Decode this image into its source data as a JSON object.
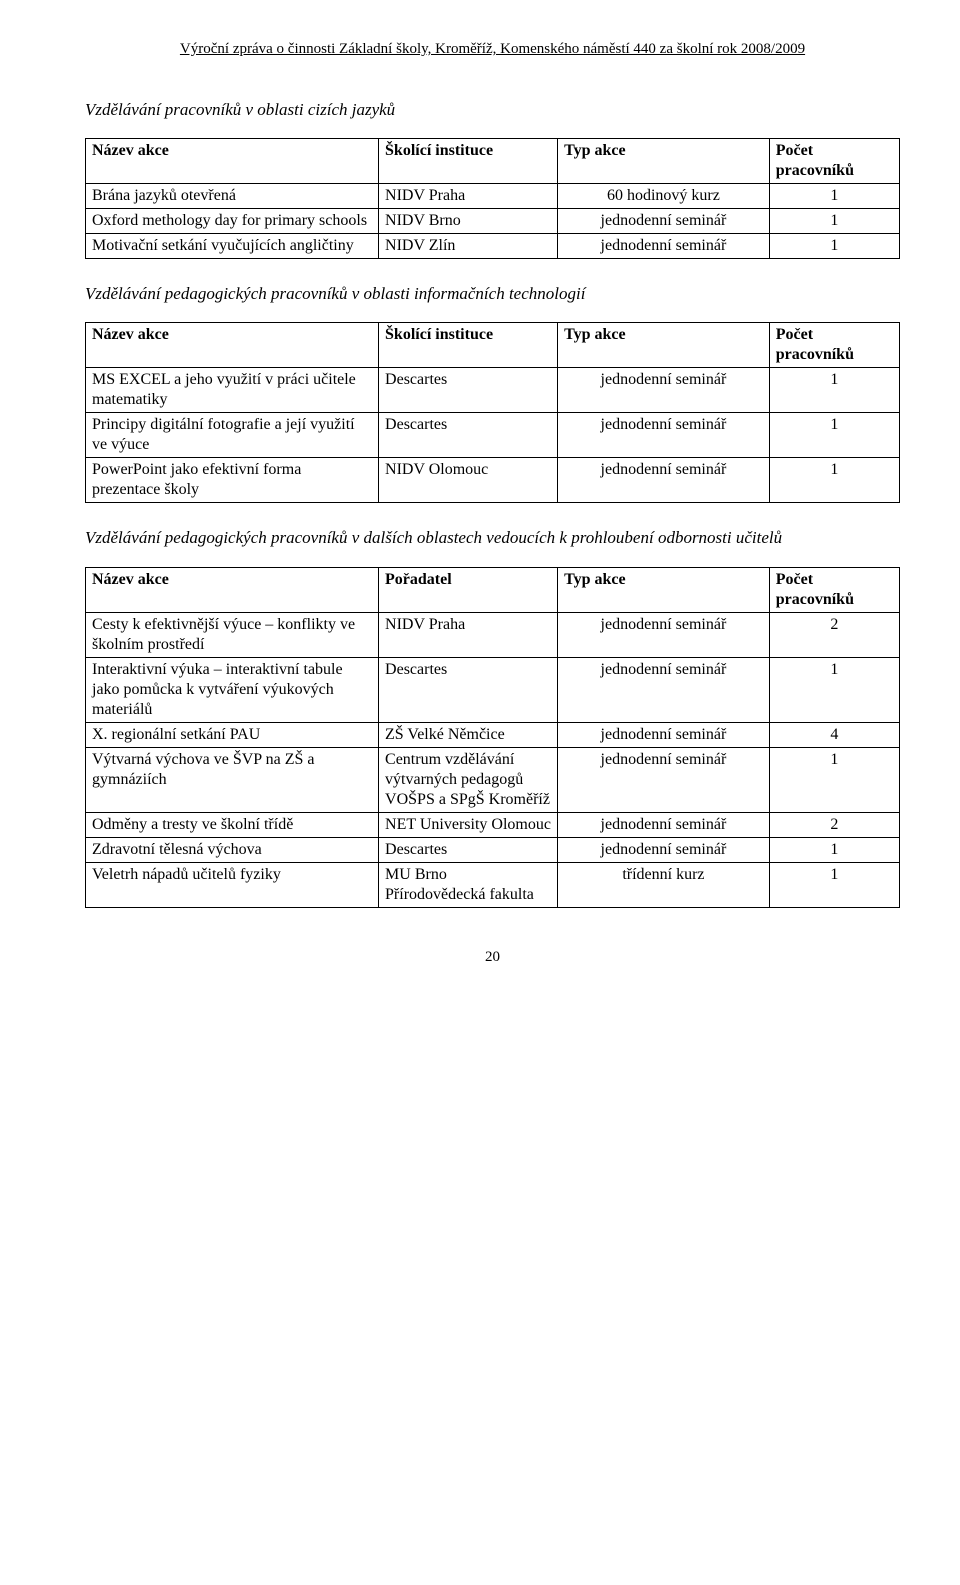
{
  "header": "Výroční zpráva o činnosti Základní školy, Kroměříž, Komenského náměstí 440 za školní rok 2008/2009",
  "page_number": "20",
  "section1": {
    "title": "Vzdělávání pracovníků v oblasti cizích jazyků",
    "columns": [
      "Název akce",
      "Školící instituce",
      "Typ akce",
      "Počet pracovníků"
    ],
    "rows": [
      [
        "Brána jazyků otevřená",
        "NIDV\nPraha",
        "60 hodinový kurz",
        "1"
      ],
      [
        "Oxford methology day for primary schools",
        "NIDV\nBrno",
        "jednodenní seminář",
        "1"
      ],
      [
        "Motivační setkání vyučujících angličtiny",
        "NIDV\nZlín",
        "jednodenní seminář",
        "1"
      ]
    ]
  },
  "section2": {
    "title": "Vzdělávání pedagogických pracovníků v oblasti informačních technologií",
    "columns": [
      "Název akce",
      "Školící instituce",
      "Typ akce",
      "Počet pracovníků"
    ],
    "rows": [
      [
        "MS EXCEL a jeho využití v práci učitele matematiky",
        "Descartes",
        "jednodenní seminář",
        "1"
      ],
      [
        "Principy digitální fotografie a její využití ve výuce",
        "Descartes",
        "jednodenní seminář",
        "1"
      ],
      [
        "PowerPoint jako efektivní forma prezentace školy",
        "NIDV\nOlomouc",
        "jednodenní seminář",
        "1"
      ]
    ]
  },
  "section3": {
    "title": "Vzdělávání pedagogických pracovníků v dalších oblastech vedoucích k prohloubení odbornosti učitelů",
    "columns": [
      "Název akce",
      "Pořadatel",
      "Typ akce",
      "Počet pracovníků"
    ],
    "rows": [
      [
        "Cesty k efektivnější výuce – konflikty ve školním prostředí",
        "NIDV\nPraha",
        "jednodenní seminář",
        "2"
      ],
      [
        "Interaktivní výuka – interaktivní tabule jako pomůcka k vytváření výukových materiálů",
        "Descartes",
        "jednodenní seminář",
        "1"
      ],
      [
        "X. regionální setkání PAU",
        "ZŠ\nVelké Němčice",
        "jednodenní seminář",
        "4"
      ],
      [
        "Výtvarná výchova ve ŠVP na ZŠ a gymnáziích",
        "Centrum vzdělávání výtvarných pedagogů VOŠPS a SPgŠ Kroměříž",
        "jednodenní seminář",
        "1"
      ],
      [
        "Odměny a tresty ve školní třídě",
        "NET University Olomouc",
        "jednodenní seminář",
        "2"
      ],
      [
        "Zdravotní tělesná výchova",
        "Descartes",
        "jednodenní seminář",
        "1"
      ],
      [
        "Veletrh nápadů učitelů fyziky",
        "MU Brno Přírodovědecká fakulta",
        "třídenní kurz",
        "1"
      ]
    ]
  }
}
